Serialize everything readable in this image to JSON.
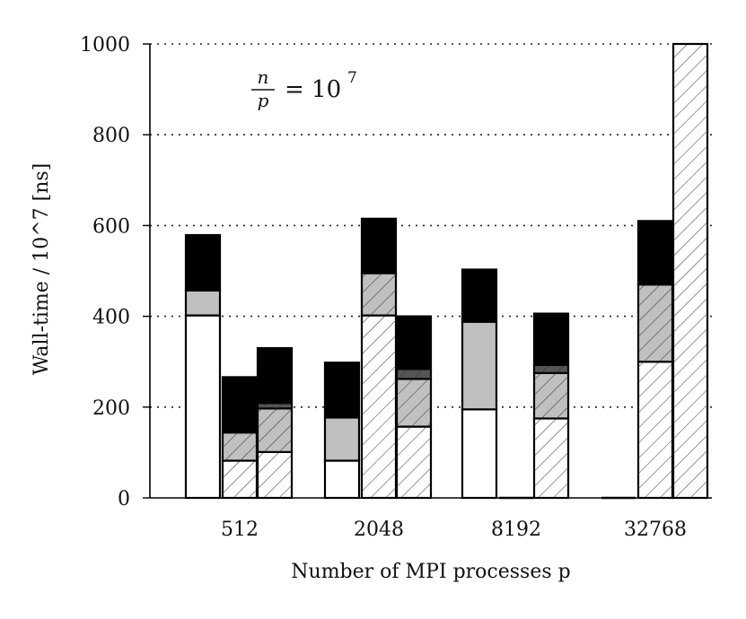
{
  "chart_data": {
    "type": "bar",
    "stacked": true,
    "categories": [
      "512",
      "2048",
      "8192",
      "32768"
    ],
    "xlabel": "Number of MPI processes p",
    "ylabel": "Wall-time / 10^7 [ns]",
    "ylim": [
      0,
      1000
    ],
    "yticks": [
      "0",
      "200",
      "400",
      "600",
      "800",
      "1000"
    ],
    "grid": "horizontal dotted",
    "annotation": {
      "frac_num": "n",
      "frac_den": "p",
      "rhs": "= 10",
      "exp": "7"
    },
    "colors": {
      "segment1": "#ffffff",
      "segment2": "#c0c0c0",
      "segment3": "#555555",
      "segment4": "#000000",
      "outline": "#000000"
    },
    "bars": [
      {
        "category": "512",
        "slot": 0,
        "hatched": false,
        "segments": [
          402,
          55,
          0,
          122
        ]
      },
      {
        "category": "512",
        "slot": 1,
        "hatched": true,
        "segments": [
          82,
          62,
          0,
          122
        ]
      },
      {
        "category": "512",
        "slot": 2,
        "hatched": true,
        "segments": [
          101,
          96,
          12,
          121
        ]
      },
      {
        "category": "2048",
        "slot": 0,
        "hatched": false,
        "segments": [
          82,
          95,
          0,
          121
        ]
      },
      {
        "category": "2048",
        "slot": 1,
        "hatched": true,
        "segments": [
          402,
          93,
          0,
          120
        ]
      },
      {
        "category": "2048",
        "slot": 2,
        "hatched": true,
        "segments": [
          157,
          105,
          22,
          116
        ]
      },
      {
        "category": "8192",
        "slot": 0,
        "hatched": false,
        "segments": [
          195,
          193,
          0,
          115
        ]
      },
      {
        "category": "8192",
        "slot": 1,
        "hatched": true,
        "segments": [],
        "empty": true
      },
      {
        "category": "8192",
        "slot": 2,
        "hatched": true,
        "segments": [
          175,
          100,
          18,
          113
        ]
      },
      {
        "category": "32768",
        "slot": 0,
        "hatched": false,
        "segments": [],
        "empty": true
      },
      {
        "category": "32768",
        "slot": 1,
        "hatched": true,
        "segments": [
          300,
          170,
          0,
          140
        ]
      },
      {
        "category": "32768",
        "slot": 2,
        "hatched": true,
        "segments": [
          1000,
          0,
          0,
          0
        ],
        "clipped": true
      }
    ]
  }
}
